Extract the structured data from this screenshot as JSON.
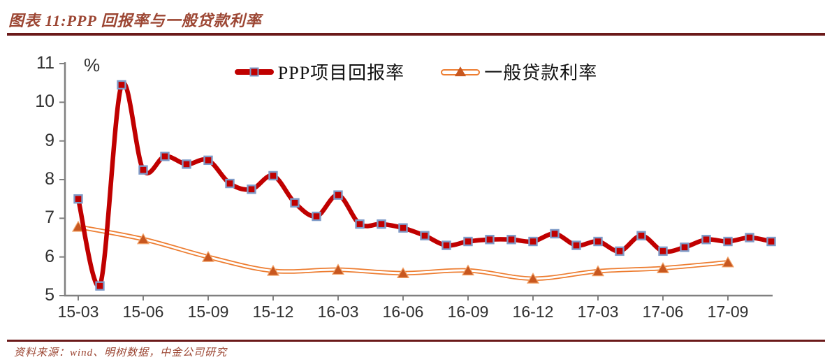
{
  "header": {
    "title": "图表 11:PPP 回报率与一般贷款利率"
  },
  "footer": {
    "source": "资料来源：wind、明树数据，中金公司研究"
  },
  "theme": {
    "rule_color": "#6B1A1A",
    "title_color": "#9C4633",
    "axis_color": "#808080",
    "tick_label_color": "#303030",
    "background": "#ffffff"
  },
  "chart_data": {
    "type": "line",
    "title": "图表 11:PPP 回报率与一般贷款利率",
    "ylabel": "%",
    "ylim": [
      5,
      11
    ],
    "yticks": [
      5,
      6,
      7,
      8,
      9,
      10,
      11
    ],
    "xtick_labels": [
      "15-03",
      "15-06",
      "15-09",
      "15-12",
      "16-03",
      "16-06",
      "16-09",
      "16-12",
      "17-03",
      "17-06",
      "17-09"
    ],
    "grid": false,
    "legend_position": "top-center",
    "series": [
      {
        "name": "PPP项目回报率",
        "type": "smooth-line",
        "frequency": "monthly",
        "color": "#C00000",
        "marker": "square",
        "marker_fill": "#C00000",
        "marker_border": "#7E9BC8",
        "x": [
          "15-03",
          "15-04",
          "15-05",
          "15-06",
          "15-07",
          "15-08",
          "15-09",
          "15-10",
          "15-11",
          "15-12",
          "16-01",
          "16-02",
          "16-03",
          "16-04",
          "16-05",
          "16-06",
          "16-07",
          "16-08",
          "16-09",
          "16-10",
          "16-11",
          "16-12",
          "17-01",
          "17-02",
          "17-03",
          "17-04",
          "17-05",
          "17-06",
          "17-07",
          "17-08",
          "17-09",
          "17-10",
          "17-11"
        ],
        "values": [
          7.5,
          5.25,
          10.45,
          8.25,
          8.6,
          8.4,
          8.5,
          7.9,
          7.75,
          8.1,
          7.4,
          7.05,
          7.6,
          6.85,
          6.85,
          6.75,
          6.55,
          6.3,
          6.4,
          6.45,
          6.45,
          6.4,
          6.6,
          6.3,
          6.4,
          6.15,
          6.55,
          6.15,
          6.25,
          6.45,
          6.4,
          6.5,
          6.4
        ]
      },
      {
        "name": "一般贷款利率",
        "type": "smooth-line-outlined",
        "frequency": "quarterly",
        "color": "#ED7D31",
        "inner_color": "#ffffff",
        "marker": "triangle",
        "marker_fill": "#C8571F",
        "marker_border": "#F2A369",
        "x": [
          "15-03",
          "15-06",
          "15-09",
          "15-12",
          "16-03",
          "16-06",
          "16-09",
          "16-12",
          "17-03",
          "17-06",
          "17-09"
        ],
        "values": [
          6.78,
          6.46,
          6.0,
          5.64,
          5.67,
          5.58,
          5.65,
          5.44,
          5.63,
          5.71,
          5.86
        ]
      }
    ]
  }
}
